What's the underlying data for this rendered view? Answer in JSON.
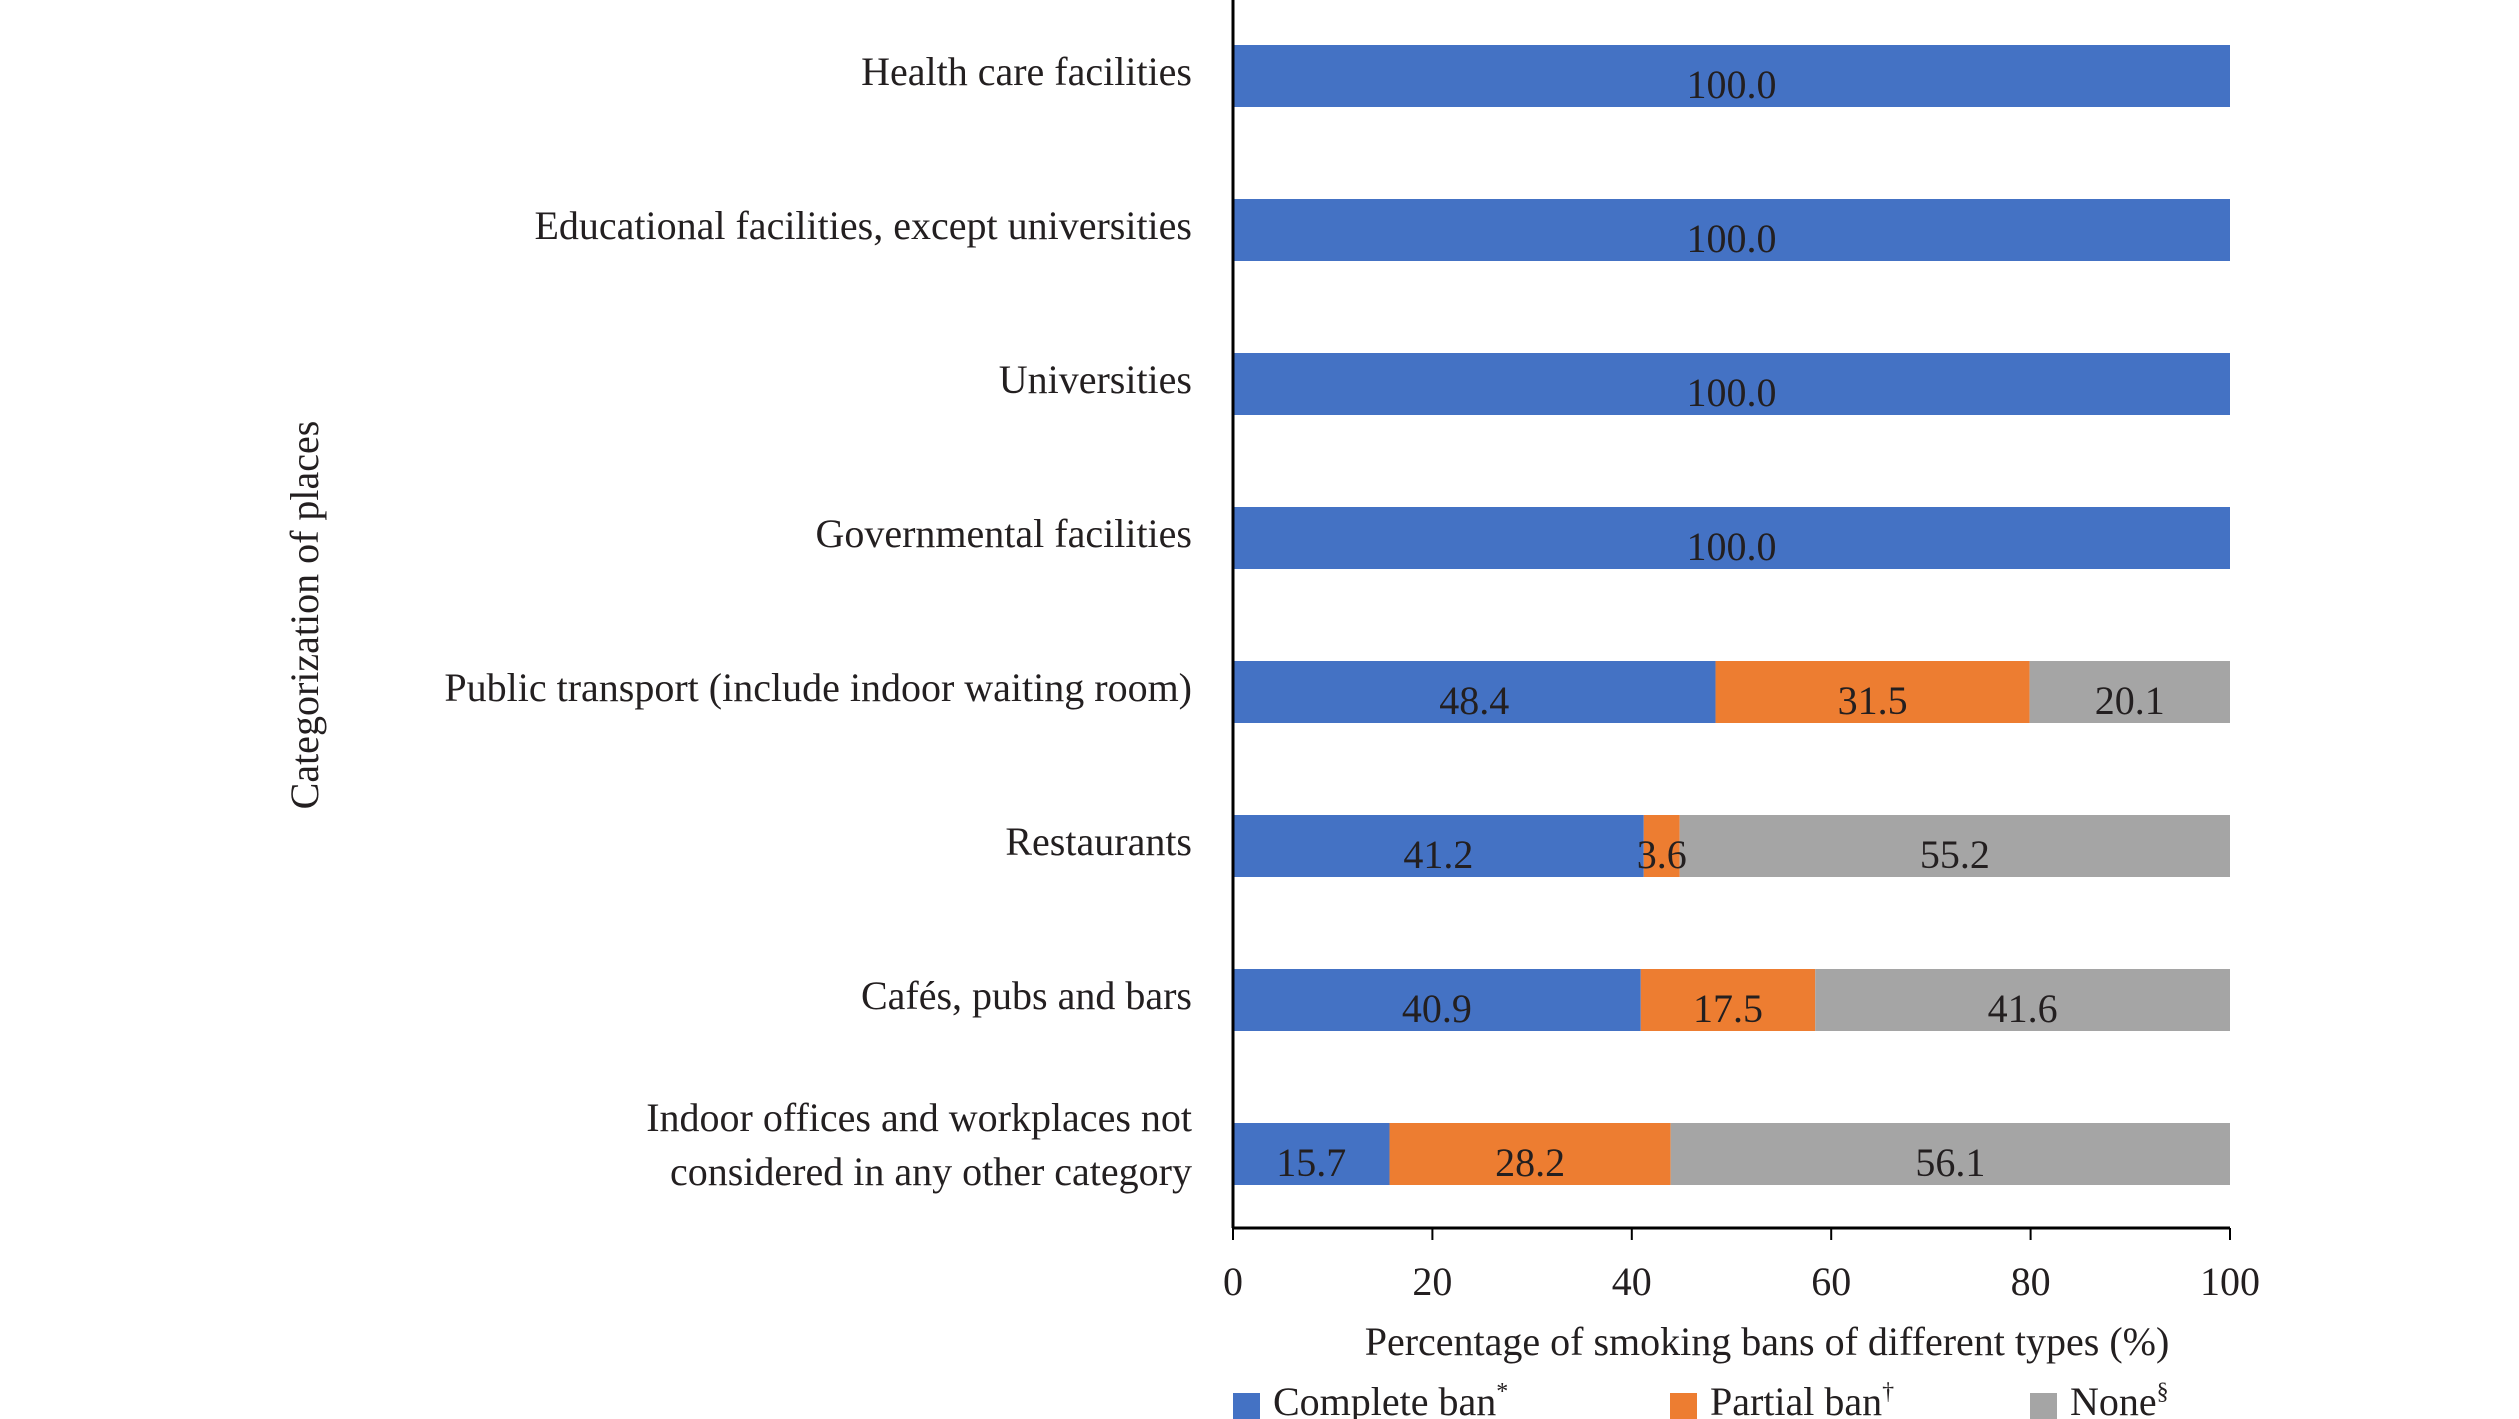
{
  "chart_data": {
    "type": "bar",
    "orientation": "horizontal",
    "stacked": true,
    "xlabel": "Percentage of smoking bans of different types (%)",
    "ylabel": "Categorization of places",
    "xlim": [
      0,
      100
    ],
    "xticks": [
      "0",
      "20",
      "40",
      "60",
      "80",
      "100"
    ],
    "grid": false,
    "legend_position": "bottom",
    "categories": [
      [
        "Health care facilities"
      ],
      [
        "Educational facilities, except universities"
      ],
      [
        "Universities"
      ],
      [
        "Governmental facilities"
      ],
      [
        "Public transport (include indoor waiting room)"
      ],
      [
        "Restaurants"
      ],
      [
        "Cafés, pubs and bars"
      ],
      [
        "Indoor offices and workplaces not",
        "considered in any other category"
      ]
    ],
    "series": [
      {
        "name": "Complete ban",
        "marker": "*",
        "color": "#4472c4",
        "values": [
          100.0,
          100.0,
          100.0,
          100.0,
          48.4,
          41.2,
          40.9,
          15.7
        ],
        "labels": [
          "100.0",
          "100.0",
          "100.0",
          "100.0",
          "48.4",
          "41.2",
          "40.9",
          "15.7"
        ]
      },
      {
        "name": "Partial ban",
        "marker": "†",
        "color": "#ed7d31",
        "values": [
          0,
          0,
          0,
          0,
          31.5,
          3.6,
          17.5,
          28.2
        ],
        "labels": [
          "",
          "",
          "",
          "",
          "31.5",
          "3.6",
          "17.5",
          "28.2"
        ]
      },
      {
        "name": "None",
        "marker": "§",
        "color": "#a5a5a5",
        "values": [
          0,
          0,
          0,
          0,
          20.1,
          55.2,
          41.6,
          56.1
        ],
        "labels": [
          "",
          "",
          "",
          "",
          "20.1",
          "55.2",
          "41.6",
          "56.1"
        ]
      }
    ]
  }
}
